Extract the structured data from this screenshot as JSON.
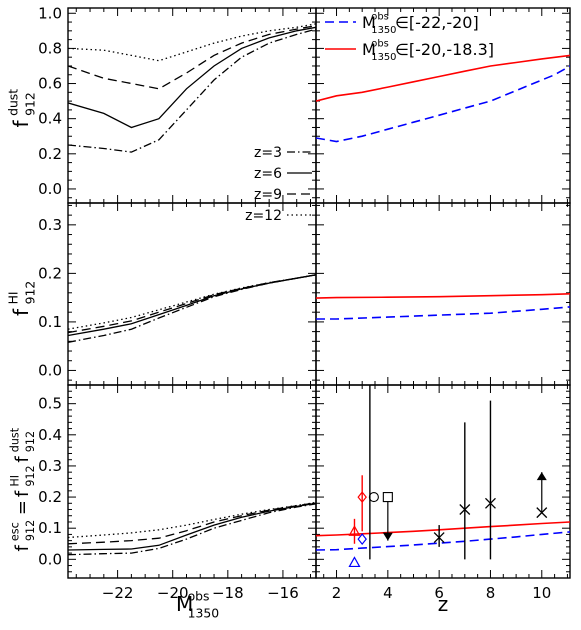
{
  "colors": {
    "black": "#000000",
    "red": "#ff0000",
    "blue": "#0000ff"
  },
  "chart_data": [
    {
      "type": "line",
      "panel": "top-left",
      "ylabel": {
        "base": "f",
        "sup": "dust",
        "sub": "912"
      },
      "xlim": [
        -23.8,
        -14.8
      ],
      "ylim": [
        -0.08,
        1.03
      ],
      "xticks": [
        -22,
        -20,
        -18,
        -16
      ],
      "xticklabels": [],
      "yticks": [
        0.0,
        0.2,
        0.4,
        0.6,
        0.8,
        1.0
      ],
      "yticklabels": [
        "0.0",
        "0.2",
        "0.4",
        "0.6",
        "0.8",
        "1.0"
      ],
      "legend": {
        "placement": "lower-right"
      },
      "series": [
        {
          "name": "z=3",
          "style": "dashdot",
          "color": "#000000",
          "x": [
            -23.8,
            -22.5,
            -21.5,
            -20.5,
            -19.5,
            -18.5,
            -17.5,
            -16.5,
            -15.5,
            -14.8
          ],
          "y": [
            0.25,
            0.23,
            0.21,
            0.28,
            0.45,
            0.62,
            0.75,
            0.83,
            0.88,
            0.91
          ]
        },
        {
          "name": "z=6",
          "style": "solid",
          "color": "#000000",
          "x": [
            -23.8,
            -22.5,
            -21.5,
            -20.5,
            -19.5,
            -18.5,
            -17.5,
            -16.5,
            -15.5,
            -14.8
          ],
          "y": [
            0.49,
            0.43,
            0.35,
            0.4,
            0.57,
            0.7,
            0.8,
            0.86,
            0.9,
            0.92
          ]
        },
        {
          "name": "z=9",
          "style": "dashed",
          "color": "#000000",
          "x": [
            -23.8,
            -22.5,
            -21.5,
            -20.5,
            -19.5,
            -18.5,
            -17.5,
            -16.5,
            -15.5,
            -14.8
          ],
          "y": [
            0.7,
            0.63,
            0.6,
            0.57,
            0.66,
            0.76,
            0.83,
            0.88,
            0.91,
            0.93
          ]
        },
        {
          "name": "z=12",
          "style": "dotted",
          "color": "#000000",
          "x": [
            -23.8,
            -22.5,
            -21.5,
            -20.5,
            -19.5,
            -18.5,
            -17.5,
            -16.5,
            -15.5,
            -14.8
          ],
          "y": [
            0.8,
            0.79,
            0.76,
            0.73,
            0.78,
            0.83,
            0.87,
            0.9,
            0.92,
            0.94
          ]
        }
      ]
    },
    {
      "type": "line",
      "panel": "top-right",
      "xlim": [
        1.2,
        11.1
      ],
      "ylim": [
        -0.08,
        1.03
      ],
      "xticks": [
        2,
        4,
        6,
        8,
        10
      ],
      "xticklabels": [],
      "yticks": [
        0.0,
        0.2,
        0.4,
        0.6,
        0.8,
        1.0
      ],
      "yticklabels": [],
      "legend": {
        "placement": "top-left"
      },
      "series": [
        {
          "name": "∈[-22,-20]",
          "label": {
            "base": "M",
            "sup": "obs",
            "sub": "1350",
            "range": "∈[-22,-20]"
          },
          "style": "dashed",
          "color": "#0000ff",
          "x": [
            1.2,
            2,
            3,
            4,
            5,
            6,
            7,
            8,
            9,
            10,
            10.5,
            11.1
          ],
          "y": [
            0.29,
            0.27,
            0.3,
            0.34,
            0.38,
            0.42,
            0.46,
            0.5,
            0.56,
            0.62,
            0.65,
            0.7
          ]
        },
        {
          "name": "∈[-20,-18.3]",
          "label": {
            "base": "M",
            "sup": "obs",
            "sub": "1350",
            "range": "∈[-20,-18.3]"
          },
          "style": "solid",
          "color": "#ff0000",
          "x": [
            1.2,
            2,
            3,
            4,
            5,
            6,
            7,
            8,
            9,
            10,
            11.1
          ],
          "y": [
            0.5,
            0.53,
            0.55,
            0.58,
            0.61,
            0.64,
            0.67,
            0.7,
            0.72,
            0.74,
            0.76
          ]
        }
      ]
    },
    {
      "type": "line",
      "panel": "middle-left",
      "ylabel": {
        "base": "f",
        "sup": "HI",
        "sub": "912"
      },
      "xlim": [
        -23.8,
        -14.8
      ],
      "ylim": [
        -0.03,
        0.345
      ],
      "xticks": [
        -22,
        -20,
        -18,
        -16
      ],
      "xticklabels": [],
      "yticks": [
        0.0,
        0.1,
        0.2,
        0.3
      ],
      "yticklabels": [
        "0.0",
        "0.1",
        "0.2",
        "0.3"
      ],
      "series": [
        {
          "name": "z=3",
          "style": "dashdot",
          "color": "#000000",
          "x": [
            -23.8,
            -22.5,
            -21.5,
            -20.5,
            -19.5,
            -18.5,
            -17.5,
            -16.5,
            -15.5,
            -14.8
          ],
          "y": [
            0.058,
            0.072,
            0.085,
            0.108,
            0.13,
            0.152,
            0.167,
            0.18,
            0.19,
            0.197
          ]
        },
        {
          "name": "z=6",
          "style": "solid",
          "color": "#000000",
          "x": [
            -23.8,
            -22.5,
            -21.5,
            -20.5,
            -19.5,
            -18.5,
            -17.5,
            -16.5,
            -15.5,
            -14.8
          ],
          "y": [
            0.072,
            0.085,
            0.096,
            0.115,
            0.134,
            0.154,
            0.168,
            0.18,
            0.19,
            0.197
          ]
        },
        {
          "name": "z=9",
          "style": "dashed",
          "color": "#000000",
          "x": [
            -23.8,
            -22.5,
            -21.5,
            -20.5,
            -19.5,
            -18.5,
            -17.5,
            -16.5,
            -15.5,
            -14.8
          ],
          "y": [
            0.078,
            0.091,
            0.102,
            0.12,
            0.138,
            0.156,
            0.169,
            0.181,
            0.19,
            0.197
          ]
        },
        {
          "name": "z=12",
          "style": "dotted",
          "color": "#000000",
          "x": [
            -23.8,
            -22.5,
            -21.5,
            -20.5,
            -19.5,
            -18.5,
            -17.5,
            -16.5,
            -15.5,
            -14.8
          ],
          "y": [
            0.085,
            0.098,
            0.109,
            0.125,
            0.141,
            0.157,
            0.17,
            0.181,
            0.19,
            0.197
          ]
        }
      ]
    },
    {
      "type": "line",
      "panel": "middle-right",
      "xlim": [
        1.2,
        11.1
      ],
      "ylim": [
        -0.03,
        0.345
      ],
      "xticks": [
        2,
        4,
        6,
        8,
        10
      ],
      "xticklabels": [],
      "yticks": [
        0.0,
        0.1,
        0.2,
        0.3
      ],
      "yticklabels": [],
      "series": [
        {
          "name": "blue",
          "style": "dashed",
          "color": "#0000ff",
          "x": [
            1.2,
            2,
            4,
            6,
            8,
            10,
            11.1
          ],
          "y": [
            0.106,
            0.106,
            0.11,
            0.114,
            0.118,
            0.126,
            0.131
          ]
        },
        {
          "name": "red",
          "style": "solid",
          "color": "#ff0000",
          "x": [
            1.2,
            2,
            4,
            6,
            8,
            10,
            11.1
          ],
          "y": [
            0.149,
            0.15,
            0.151,
            0.152,
            0.154,
            0.156,
            0.158
          ]
        }
      ]
    },
    {
      "type": "scatter",
      "panel": "bottom-left",
      "ylabel": {
        "lhs": {
          "base": "f",
          "sup": "esc",
          "sub": "912"
        },
        "eq": "=",
        "r1": {
          "base": "f",
          "sup": "HI",
          "sub": "912"
        },
        "r2": {
          "base": "f",
          "sup": "dust",
          "sub": "912"
        }
      },
      "xlabel": {
        "base": "M",
        "sup": "obs",
        "sub": "1350"
      },
      "xlim": [
        -23.8,
        -14.8
      ],
      "ylim": [
        -0.06,
        0.56
      ],
      "xticks": [
        -22,
        -20,
        -18,
        -16
      ],
      "xticklabels": [
        "−22",
        "−20",
        "−18",
        "−16"
      ],
      "yticks": [
        0.0,
        0.1,
        0.2,
        0.3,
        0.4,
        0.5
      ],
      "yticklabels": [
        "0.0",
        "0.1",
        "0.2",
        "0.3",
        "0.4",
        "0.5"
      ],
      "series": [
        {
          "name": "z=3",
          "style": "dashdot",
          "color": "#000000",
          "x": [
            -23.8,
            -22.5,
            -21.5,
            -20.5,
            -19.5,
            -18.5,
            -17.5,
            -16.5,
            -15.5,
            -14.8
          ],
          "y": [
            0.015,
            0.018,
            0.02,
            0.035,
            0.065,
            0.1,
            0.125,
            0.15,
            0.168,
            0.178
          ]
        },
        {
          "name": "z=6",
          "style": "solid",
          "color": "#000000",
          "x": [
            -23.8,
            -22.5,
            -21.5,
            -20.5,
            -19.5,
            -18.5,
            -17.5,
            -16.5,
            -15.5,
            -14.8
          ],
          "y": [
            0.03,
            0.032,
            0.033,
            0.045,
            0.078,
            0.11,
            0.135,
            0.155,
            0.17,
            0.18
          ]
        },
        {
          "name": "z=9",
          "style": "dashed",
          "color": "#000000",
          "x": [
            -23.8,
            -22.5,
            -21.5,
            -20.5,
            -19.5,
            -18.5,
            -17.5,
            -16.5,
            -15.5,
            -14.8
          ],
          "y": [
            0.05,
            0.055,
            0.06,
            0.068,
            0.092,
            0.12,
            0.14,
            0.158,
            0.172,
            0.182
          ]
        },
        {
          "name": "z=12",
          "style": "dotted",
          "color": "#000000",
          "x": [
            -23.8,
            -22.5,
            -21.5,
            -20.5,
            -19.5,
            -18.5,
            -17.5,
            -16.5,
            -15.5,
            -14.8
          ],
          "y": [
            0.07,
            0.078,
            0.085,
            0.095,
            0.11,
            0.128,
            0.145,
            0.16,
            0.173,
            0.183
          ]
        }
      ]
    },
    {
      "type": "scatter",
      "panel": "bottom-right",
      "xlabel": "z",
      "xlim": [
        1.2,
        11.1
      ],
      "ylim": [
        -0.06,
        0.56
      ],
      "xticks": [
        2,
        4,
        6,
        8,
        10
      ],
      "xticklabels": [
        "2",
        "4",
        "6",
        "8",
        "10"
      ],
      "yticks": [
        0.0,
        0.1,
        0.2,
        0.3,
        0.4,
        0.5
      ],
      "yticklabels": [],
      "series": [
        {
          "name": "blue",
          "style": "dashed",
          "color": "#0000ff",
          "x": [
            1.2,
            2,
            3,
            4,
            5,
            6,
            7,
            8,
            9,
            10,
            11.1
          ],
          "y": [
            0.03,
            0.031,
            0.036,
            0.041,
            0.046,
            0.052,
            0.058,
            0.065,
            0.072,
            0.08,
            0.088
          ]
        },
        {
          "name": "red",
          "style": "solid",
          "color": "#ff0000",
          "x": [
            1.2,
            2,
            3,
            4,
            5,
            6,
            7,
            8,
            9,
            10,
            11.1
          ],
          "y": [
            0.076,
            0.078,
            0.082,
            0.086,
            0.09,
            0.095,
            0.1,
            0.105,
            0.11,
            0.115,
            0.12
          ]
        }
      ],
      "points": [
        {
          "x": 2.7,
          "y": 0.09,
          "ylo": 0.05,
          "yhi": 0.13,
          "marker": "triangle-open",
          "color": "#ff0000"
        },
        {
          "x": 2.7,
          "y": -0.01,
          "marker": "triangle-open",
          "color": "#0000ff"
        },
        {
          "x": 3.0,
          "y": 0.2,
          "ylo": 0.09,
          "yhi": 0.27,
          "marker": "diamond-open",
          "color": "#ff0000"
        },
        {
          "x": 3.0,
          "y": 0.065,
          "marker": "diamond-open",
          "color": "#0000ff"
        },
        {
          "x": 3.3,
          "y": 0.2,
          "ylo": 0.0,
          "yhi": 0.56,
          "marker": "circle-open",
          "color": "#000000"
        },
        {
          "x": 4.0,
          "y": 0.2,
          "limit": "upper",
          "limit_to": 0.06,
          "marker": "square-open",
          "color": "#000000"
        },
        {
          "x": 6.0,
          "y": 0.07,
          "ylo": 0.04,
          "yhi": 0.11,
          "marker": "x",
          "color": "#000000"
        },
        {
          "x": 7.0,
          "y": 0.16,
          "ylo": 0.0,
          "yhi": 0.44,
          "marker": "x",
          "color": "#000000"
        },
        {
          "x": 8.0,
          "y": 0.18,
          "ylo": 0.0,
          "yhi": 0.51,
          "marker": "x",
          "color": "#000000"
        },
        {
          "x": 10.0,
          "y": 0.15,
          "limit": "lower",
          "limit_to": 0.28,
          "marker": "x",
          "color": "#000000"
        }
      ]
    }
  ]
}
